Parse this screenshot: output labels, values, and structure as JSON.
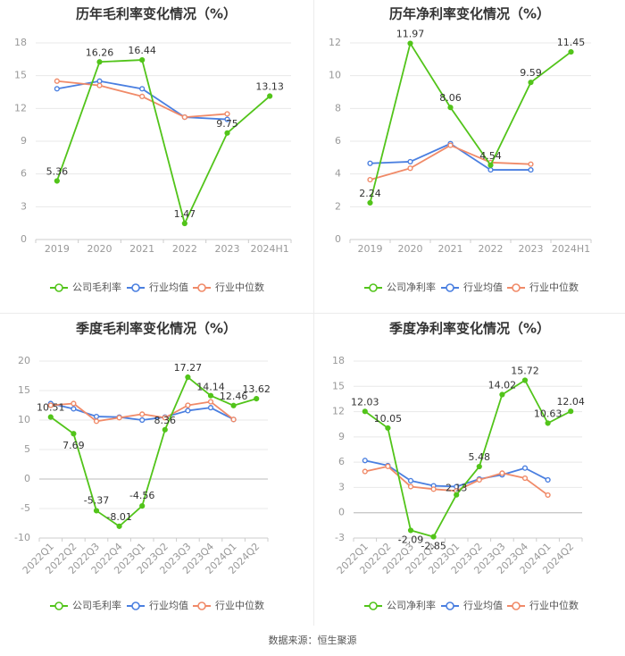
{
  "colors": {
    "company": "#52c41a",
    "avg": "#4a7fe0",
    "median": "#f08a68",
    "axis": "#999999",
    "grid": "#e8e8e8",
    "title": "#333333",
    "label": "#333333"
  },
  "legend": {
    "gross": [
      "公司毛利率",
      "行业均值",
      "行业中位数"
    ],
    "net": [
      "公司净利率",
      "行业均值",
      "行业中位数"
    ]
  },
  "source": "数据来源：恒生聚源",
  "chart_data": [
    {
      "type": "line",
      "title": "历年毛利率变化情况（%）",
      "categories": [
        "2019",
        "2020",
        "2021",
        "2022",
        "2023",
        "2024H1"
      ],
      "ylim": [
        0,
        18
      ],
      "yticks": [
        0,
        3,
        6,
        9,
        12,
        15,
        18
      ],
      "series": [
        {
          "name": "公司毛利率",
          "values": [
            5.36,
            16.26,
            16.44,
            1.47,
            9.75,
            13.13
          ]
        },
        {
          "name": "行业均值",
          "values": [
            13.8,
            14.5,
            13.8,
            11.2,
            11.0,
            null
          ]
        },
        {
          "name": "行业中位数",
          "values": [
            14.5,
            14.1,
            13.1,
            11.2,
            11.5,
            null
          ]
        }
      ],
      "labels": [
        "5.36",
        "16.26",
        "16.44",
        "1.47",
        "9.75",
        "13.13"
      ]
    },
    {
      "type": "line",
      "title": "历年净利率变化情况（%）",
      "categories": [
        "2019",
        "2020",
        "2021",
        "2022",
        "2023",
        "2024H1"
      ],
      "ylim": [
        0,
        12
      ],
      "yticks": [
        0,
        2,
        4,
        6,
        8,
        10,
        12
      ],
      "series": [
        {
          "name": "公司净利率",
          "values": [
            2.24,
            11.97,
            8.06,
            4.54,
            9.59,
            11.45
          ]
        },
        {
          "name": "行业均值",
          "values": [
            4.65,
            4.75,
            5.85,
            4.25,
            4.25,
            null
          ]
        },
        {
          "name": "行业中位数",
          "values": [
            3.65,
            4.35,
            5.75,
            4.7,
            4.6,
            null
          ]
        }
      ],
      "labels": [
        "2.24",
        "11.97",
        "8.06",
        "4.54",
        "9.59",
        "11.45"
      ]
    },
    {
      "type": "line",
      "title": "季度毛利率变化情况（%）",
      "categories": [
        "2022Q1",
        "2022Q2",
        "2022Q3",
        "2022Q4",
        "2023Q1",
        "2023Q2",
        "2023Q3",
        "2023Q4",
        "2024Q1",
        "2024Q2"
      ],
      "ylim": [
        -10,
        20
      ],
      "yticks": [
        -10,
        -5,
        0,
        5,
        10,
        15,
        20
      ],
      "series": [
        {
          "name": "公司毛利率",
          "values": [
            10.51,
            7.69,
            -5.37,
            -8.01,
            -4.56,
            8.36,
            17.27,
            14.14,
            12.46,
            13.62
          ]
        },
        {
          "name": "行业均值",
          "values": [
            12.8,
            11.9,
            10.6,
            10.5,
            10.0,
            10.5,
            11.6,
            12.1,
            10.1,
            null
          ]
        },
        {
          "name": "行业中位数",
          "values": [
            12.5,
            12.8,
            9.8,
            10.4,
            11.0,
            10.4,
            12.5,
            13.1,
            10.1,
            null
          ]
        }
      ],
      "labels": [
        "10.51",
        "7.69",
        "-5.37",
        "-8.01",
        "-4.56",
        "8.36",
        "17.27",
        "14.14",
        "12.46",
        "13.62"
      ]
    },
    {
      "type": "line",
      "title": "季度净利率变化情况（%）",
      "categories": [
        "2022Q1",
        "2022Q2",
        "2022Q3",
        "2022Q4",
        "2023Q1",
        "2023Q2",
        "2023Q3",
        "2023Q4",
        "2024Q1",
        "2024Q2"
      ],
      "ylim": [
        -3,
        18
      ],
      "yticks": [
        -3,
        0,
        3,
        6,
        9,
        12,
        15,
        18
      ],
      "series": [
        {
          "name": "公司净利率",
          "values": [
            12.03,
            10.05,
            -2.09,
            -2.85,
            2.13,
            5.48,
            14.02,
            15.72,
            10.63,
            12.04
          ]
        },
        {
          "name": "行业均值",
          "values": [
            6.2,
            5.6,
            3.8,
            3.2,
            3.1,
            4.0,
            4.5,
            5.3,
            3.9,
            null
          ]
        },
        {
          "name": "行业中位数",
          "values": [
            4.9,
            5.5,
            3.1,
            2.8,
            2.6,
            3.9,
            4.7,
            4.1,
            2.1,
            null
          ]
        }
      ],
      "labels": [
        "12.03",
        "10.05",
        "-2.09",
        "-2.85",
        "2.13",
        "5.48",
        "14.02",
        "15.72",
        "10.63",
        "12.04"
      ]
    }
  ]
}
